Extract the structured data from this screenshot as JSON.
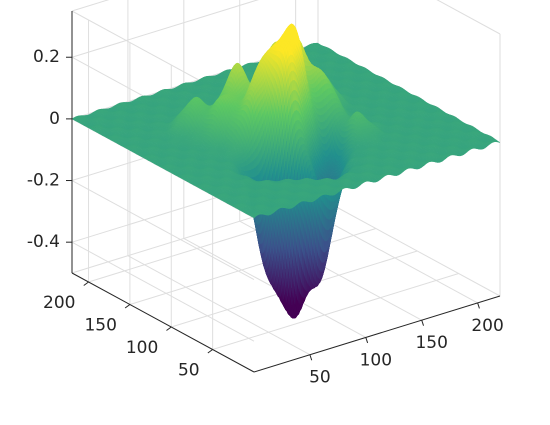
{
  "chart_data": {
    "type": "surface",
    "title": "",
    "xlabel": "",
    "ylabel": "",
    "zlabel": "",
    "xlim": [
      0,
      220
    ],
    "ylim": [
      0,
      220
    ],
    "zlim": [
      -0.5,
      0.35
    ],
    "grid": true,
    "colormap": [
      "#440154",
      "#3b528b",
      "#21908d",
      "#5dc863",
      "#fde725"
    ],
    "x_ticks": [
      {
        "value": 50,
        "label": "50"
      },
      {
        "value": 100,
        "label": "100"
      },
      {
        "value": 150,
        "label": "150"
      },
      {
        "value": 200,
        "label": "200"
      }
    ],
    "y_ticks": [
      {
        "value": 50,
        "label": "50"
      },
      {
        "value": 100,
        "label": "100"
      },
      {
        "value": 150,
        "label": "150"
      },
      {
        "value": 200,
        "label": "200"
      }
    ],
    "z_ticks": [
      {
        "value": 0.2,
        "label": "0.2"
      },
      {
        "value": 0,
        "label": "0"
      },
      {
        "value": -0.2,
        "label": "-0.2"
      },
      {
        "value": -0.4,
        "label": "-0.4"
      }
    ],
    "features": [
      {
        "x": 110,
        "y": 100,
        "z": 0.3
      },
      {
        "x": 95,
        "y": 88,
        "z": 0.26
      },
      {
        "x": 92,
        "y": 110,
        "z": 0.22
      },
      {
        "x": 125,
        "y": 120,
        "z": 0.24
      },
      {
        "x": 85,
        "y": 135,
        "z": 0.2
      },
      {
        "x": 75,
        "y": 102,
        "z": 0.16
      },
      {
        "x": 118,
        "y": 138,
        "z": 0.18
      },
      {
        "x": 140,
        "y": 105,
        "z": 0.14
      },
      {
        "x": 132,
        "y": 148,
        "z": 0.14
      },
      {
        "x": 65,
        "y": 125,
        "z": 0.12
      },
      {
        "x": 100,
        "y": 62,
        "z": 0.12
      },
      {
        "x": 155,
        "y": 128,
        "z": 0.1
      },
      {
        "x": 58,
        "y": 150,
        "z": 0.1
      },
      {
        "x": 145,
        "y": 75,
        "z": 0.08
      },
      {
        "x": 80,
        "y": 60,
        "z": -0.44
      },
      {
        "x": 95,
        "y": 48,
        "z": -0.36
      },
      {
        "x": 64,
        "y": 70,
        "z": -0.32
      },
      {
        "x": 112,
        "y": 66,
        "z": -0.22
      },
      {
        "x": 130,
        "y": 80,
        "z": -0.12
      }
    ]
  }
}
